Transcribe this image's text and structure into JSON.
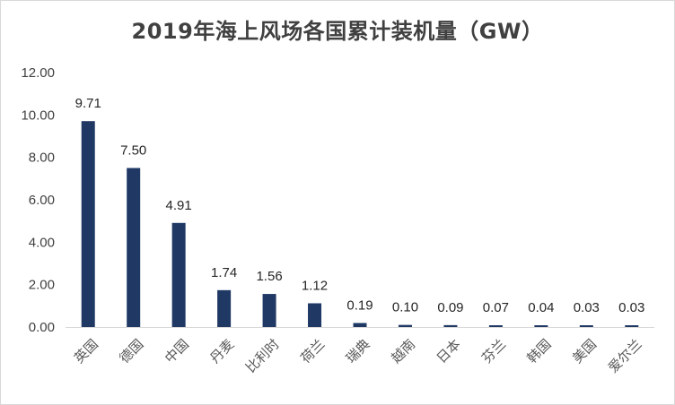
{
  "chart_data": {
    "type": "bar",
    "title": "2019年海上风场各国累计装机量（GW）",
    "xlabel": "",
    "ylabel": "",
    "categories": [
      "英国",
      "德国",
      "中国",
      "丹麦",
      "比利时",
      "荷兰",
      "瑞典",
      "越南",
      "日本",
      "芬兰",
      "韩国",
      "美国",
      "爱尔兰"
    ],
    "values": [
      9.71,
      7.5,
      4.91,
      1.74,
      1.56,
      1.12,
      0.19,
      0.1,
      0.09,
      0.07,
      0.04,
      0.03,
      0.03
    ],
    "value_labels": [
      "9.71",
      "7.50",
      "4.91",
      "1.74",
      "1.56",
      "1.12",
      "0.19",
      "0.10",
      "0.09",
      "0.07",
      "0.04",
      "0.03",
      "0.03"
    ],
    "ylim": [
      0,
      12
    ],
    "yticks": [
      "0.00",
      "2.00",
      "4.00",
      "6.00",
      "8.00",
      "10.00",
      "12.00"
    ],
    "grid": false,
    "legend": "none",
    "bar_color": "#1F3864"
  }
}
